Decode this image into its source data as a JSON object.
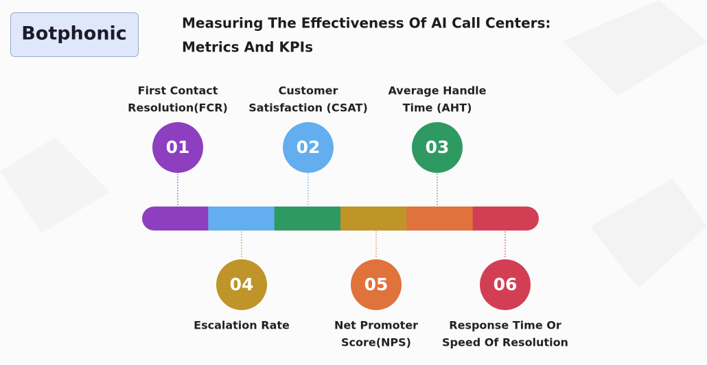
{
  "header": {
    "logo": "Botphonic",
    "title": [
      "Measuring The Effectiveness Of AI Call Centers:",
      "Metrics And KPIs"
    ]
  },
  "metrics": [
    {
      "number": "01",
      "label": [
        "First Contact",
        "Resolution(FCR)"
      ]
    },
    {
      "number": "02",
      "label": [
        "Customer",
        "Satisfaction (CSAT)"
      ]
    },
    {
      "number": "03",
      "label": [
        "Average Handle",
        "Time (AHT)"
      ]
    },
    {
      "number": "04",
      "label": [
        "Escalation Rate"
      ]
    },
    {
      "number": "05",
      "label": [
        "Net Promoter",
        "Score(NPS)"
      ]
    },
    {
      "number": "06",
      "label": [
        "Response Time Or",
        "Speed Of Resolution"
      ]
    }
  ]
}
